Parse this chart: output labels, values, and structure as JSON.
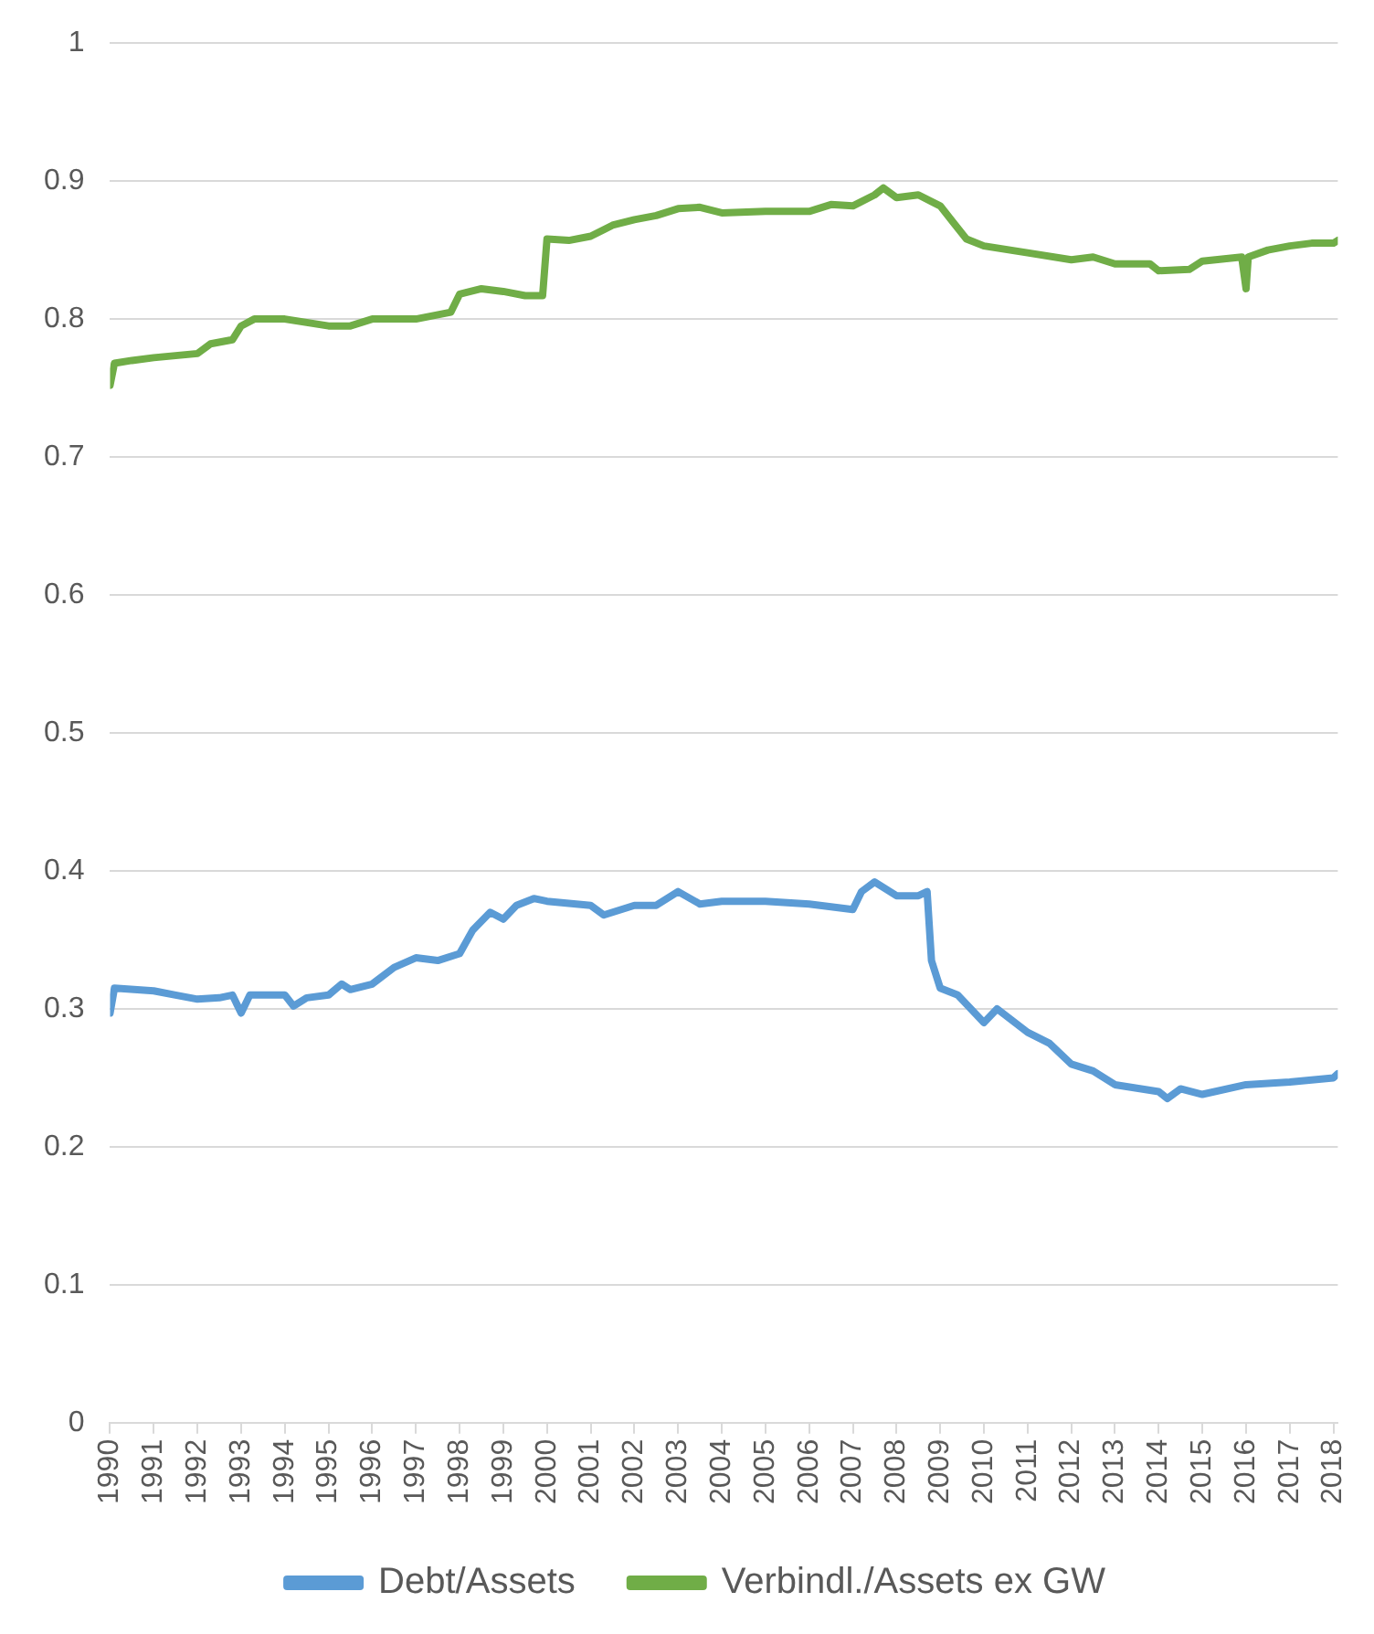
{
  "chart_data": {
    "type": "line",
    "xlim": [
      1990,
      2018.1
    ],
    "xticks": [
      1990,
      1991,
      1992,
      1993,
      1994,
      1995,
      1996,
      1997,
      1998,
      1999,
      2000,
      2001,
      2002,
      2003,
      2004,
      2005,
      2006,
      2007,
      2008,
      2009,
      2010,
      2011,
      2012,
      2013,
      2014,
      2015,
      2016,
      2017,
      2018
    ],
    "ylim": [
      0,
      1
    ],
    "yticks": [
      0,
      0.1,
      0.2,
      0.3,
      0.4,
      0.5,
      0.6,
      0.7,
      0.8,
      0.9,
      1
    ],
    "grid": "y",
    "legend": "bottom",
    "marker": "none",
    "line_style": "solid",
    "series": [
      {
        "name": "Debt/Assets",
        "color": "#5b9bd5",
        "x": [
          1990,
          1990.1,
          1991,
          1991.5,
          1992,
          1992.5,
          1992.8,
          1993,
          1993.2,
          1994,
          1994.2,
          1994.5,
          1995,
          1995.3,
          1995.5,
          1996,
          1996.5,
          1997,
          1997.5,
          1998,
          1998.3,
          1998.7,
          1999,
          1999.3,
          1999.7,
          2000,
          2001,
          2001.3,
          2002,
          2002.5,
          2003,
          2003.5,
          2004,
          2005,
          2006,
          2007,
          2007.2,
          2007.5,
          2008,
          2008.5,
          2008.7,
          2008.8,
          2009,
          2009.4,
          2010,
          2010.3,
          2011,
          2011.5,
          2012,
          2012.5,
          2013,
          2014,
          2014.2,
          2014.5,
          2015,
          2016,
          2017,
          2018,
          2018.1
        ],
        "values": [
          0.297,
          0.315,
          0.313,
          0.31,
          0.307,
          0.308,
          0.31,
          0.297,
          0.31,
          0.31,
          0.302,
          0.308,
          0.31,
          0.318,
          0.314,
          0.318,
          0.33,
          0.337,
          0.335,
          0.34,
          0.357,
          0.37,
          0.365,
          0.375,
          0.38,
          0.378,
          0.375,
          0.368,
          0.375,
          0.375,
          0.385,
          0.376,
          0.378,
          0.378,
          0.376,
          0.372,
          0.385,
          0.392,
          0.382,
          0.382,
          0.385,
          0.335,
          0.315,
          0.31,
          0.29,
          0.3,
          0.283,
          0.275,
          0.26,
          0.255,
          0.245,
          0.24,
          0.235,
          0.242,
          0.238,
          0.245,
          0.247,
          0.25,
          0.253
        ]
      },
      {
        "name": "Verbindl./Assets ex GW",
        "color": "#70ad47",
        "x": [
          1990,
          1990.1,
          1990.5,
          1991,
          1992,
          1992.3,
          1992.8,
          1993,
          1993.3,
          1994,
          1995,
          1995.5,
          1996,
          1997,
          1997.8,
          1998,
          1998.5,
          1999,
          1999.5,
          1999.9,
          2000,
          2000.5,
          2001,
          2001.5,
          2002,
          2002.5,
          2003,
          2003.5,
          2004,
          2005,
          2006,
          2006.5,
          2007,
          2007.5,
          2007.7,
          2008,
          2008.5,
          2009,
          2009.3,
          2009.6,
          2010,
          2011,
          2012,
          2012.5,
          2013,
          2013.8,
          2014,
          2014.7,
          2015,
          2015.9,
          2016,
          2016.05,
          2016.5,
          2017,
          2017.5,
          2018,
          2018.1
        ],
        "values": [
          0.752,
          0.768,
          0.77,
          0.772,
          0.775,
          0.782,
          0.785,
          0.795,
          0.8,
          0.8,
          0.795,
          0.795,
          0.8,
          0.8,
          0.805,
          0.818,
          0.822,
          0.82,
          0.817,
          0.817,
          0.858,
          0.857,
          0.86,
          0.868,
          0.872,
          0.875,
          0.88,
          0.881,
          0.877,
          0.878,
          0.878,
          0.883,
          0.882,
          0.89,
          0.895,
          0.888,
          0.89,
          0.882,
          0.87,
          0.858,
          0.853,
          0.848,
          0.843,
          0.845,
          0.84,
          0.84,
          0.835,
          0.836,
          0.842,
          0.845,
          0.822,
          0.845,
          0.85,
          0.853,
          0.855,
          0.855,
          0.857
        ]
      }
    ]
  }
}
